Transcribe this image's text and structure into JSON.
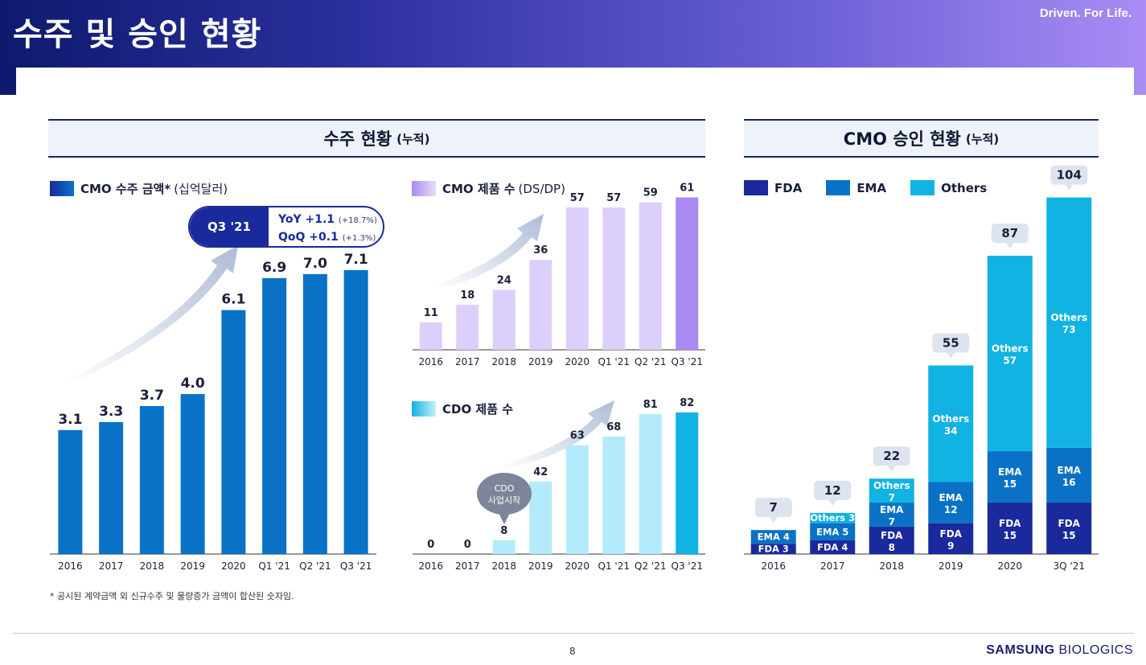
{
  "header": {
    "title": "수주 및 승인 현황",
    "slogan": "Driven. For Life."
  },
  "sections": {
    "orders": {
      "title": "수주 현황",
      "sub": "(누적)"
    },
    "approvals": {
      "title": "CMO 승인 현황",
      "sub": "(누적)"
    }
  },
  "legends": {
    "cmo_amount": {
      "label": "CMO 수주 금액*",
      "note": "(십억달러)"
    },
    "cmo_products": {
      "label": "CMO 제품 수",
      "note": "(DS/DP)"
    },
    "cdo_products": {
      "label": "CDO 제품 수"
    },
    "approvals": [
      "FDA",
      "EMA",
      "Others"
    ]
  },
  "callout": {
    "tag": "Q3 '21",
    "yoy": "YoY +1.1",
    "yoy_pct": "(+18.7%)",
    "qoq": "QoQ +0.1",
    "qoq_pct": "(+1.3%)"
  },
  "cdo_bubble": {
    "line1": "CDO",
    "line2": "사업시작"
  },
  "colors": {
    "cmo_amount": "#0a72c6",
    "cmo_products": "#dccffb",
    "cmo_products_last": "#a98af0",
    "cdo_products": "#b3ebfb",
    "cdo_products_last": "#11b3e2",
    "fda": "#1a2a9c",
    "ema": "#0a72c6",
    "others": "#11b3e2"
  },
  "chart_data": [
    {
      "type": "bar",
      "title": "CMO 수주 금액*",
      "ylabel": "(십억달러)",
      "categories": [
        "2016",
        "2017",
        "2018",
        "2019",
        "2020",
        "Q1 '21",
        "Q2 '21",
        "Q3 '21"
      ],
      "values": [
        3.1,
        3.3,
        3.7,
        4.0,
        6.1,
        6.9,
        7.0,
        7.1
      ],
      "labels": [
        "3.1",
        "3.3",
        "3.7",
        "4.0",
        "6.1",
        "6.9",
        "7.0",
        "7.1"
      ],
      "ylim": [
        0,
        7.6
      ]
    },
    {
      "type": "bar",
      "title": "CMO 제품 수",
      "ylabel": "(DS/DP)",
      "categories": [
        "2016",
        "2017",
        "2018",
        "2019",
        "2020",
        "Q1 '21",
        "Q2 '21",
        "Q3 '21"
      ],
      "values": [
        11,
        18,
        24,
        36,
        57,
        57,
        59,
        61
      ],
      "labels": [
        "11",
        "18",
        "24",
        "36",
        "57",
        "57",
        "59",
        "61"
      ],
      "ylim": [
        0,
        66
      ]
    },
    {
      "type": "bar",
      "title": "CDO 제품 수",
      "categories": [
        "2016",
        "2017",
        "2018",
        "2019",
        "2020",
        "Q1 '21",
        "Q2 '21",
        "Q3 '21"
      ],
      "values": [
        0,
        0,
        8,
        42,
        63,
        68,
        81,
        82
      ],
      "labels": [
        "0",
        "0",
        "8",
        "42",
        "63",
        "68",
        "81",
        "82"
      ],
      "ylim": [
        0,
        88
      ]
    },
    {
      "type": "bar",
      "title": "CMO 승인 현황",
      "stacked": true,
      "categories": [
        "2016",
        "2017",
        "2018",
        "2019",
        "2020",
        "3Q '21"
      ],
      "series": [
        {
          "name": "FDA",
          "values": [
            3,
            4,
            8,
            9,
            15,
            15
          ]
        },
        {
          "name": "EMA",
          "values": [
            4,
            5,
            7,
            12,
            15,
            16
          ]
        },
        {
          "name": "Others",
          "values": [
            0,
            3,
            7,
            34,
            57,
            73
          ]
        }
      ],
      "totals": [
        7,
        12,
        22,
        55,
        87,
        104
      ],
      "segment_labels": [
        [
          "FDA 3",
          "EMA 4",
          ""
        ],
        [
          "FDA 4",
          "EMA 5",
          "Others 3"
        ],
        [
          "FDA\n8",
          "EMA\n7",
          "Others\n7"
        ],
        [
          "FDA\n9",
          "EMA\n12",
          "Others\n34"
        ],
        [
          "FDA\n15",
          "EMA\n15",
          "Others\n57"
        ],
        [
          "FDA\n15",
          "EMA\n16",
          "Others\n73"
        ]
      ],
      "total_labels": [
        "7",
        "12",
        "22",
        "55",
        "87",
        "104"
      ],
      "ylim": [
        0,
        110
      ]
    }
  ],
  "footnote": "* 공시된 계약금액 외 신규수주 및 물량증가 금액이 합산된 숫자임.",
  "footer": {
    "page": "8",
    "brand_bold": "SAMSUNG",
    "brand_rest": "BIOLOGICS"
  }
}
